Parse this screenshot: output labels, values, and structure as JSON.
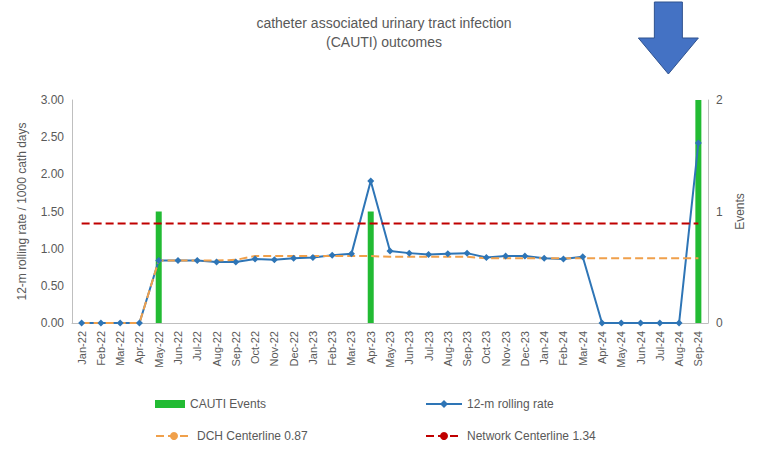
{
  "chart_data": {
    "type": "line",
    "title": "catheter associated urinary tract infection\n(CAUTI) outcomes",
    "y_label": "12-m rolling rate / 1000 cath days",
    "y2_label": "Events",
    "categories": [
      "Jan-22",
      "Feb-22",
      "Mar-22",
      "Apr-22",
      "May-22",
      "Jun-22",
      "Jul-22",
      "Aug-22",
      "Sep-22",
      "Oct-22",
      "Nov-22",
      "Dec-22",
      "Jan-23",
      "Feb-23",
      "Mar-23",
      "Apr-23",
      "May-23",
      "Jun-23",
      "Jul-23",
      "Aug-23",
      "Sep-23",
      "Oct-23",
      "Nov-23",
      "Dec-23",
      "Jan-24",
      "Feb-24",
      "Mar-24",
      "Apr-24",
      "May-24",
      "Jun-24",
      "Jul-24",
      "Aug-24",
      "Sep-24"
    ],
    "series": [
      {
        "name": "CAUTI Events",
        "type": "bar",
        "axis": "y2",
        "color": "#22bb33",
        "values": [
          0,
          0,
          0,
          0,
          1,
          0,
          0,
          0,
          0,
          0,
          0,
          0,
          0,
          0,
          0,
          1,
          0,
          0,
          0,
          0,
          0,
          0,
          0,
          0,
          0,
          0,
          0,
          0,
          0,
          0,
          0,
          0,
          2
        ]
      },
      {
        "name": "12-m rolling rate",
        "type": "line",
        "color": "#2e75b6",
        "marker": "diamond",
        "line_style": "solid",
        "values": [
          0,
          0,
          0,
          0,
          0.84,
          0.84,
          0.84,
          0.82,
          0.82,
          0.86,
          0.85,
          0.87,
          0.88,
          0.91,
          0.93,
          1.91,
          0.97,
          0.94,
          0.92,
          0.93,
          0.94,
          0.88,
          0.9,
          0.9,
          0.87,
          0.86,
          0.89,
          0,
          0,
          0,
          0,
          0,
          2.42
        ]
      },
      {
        "name": "DCH Centerline 0.87",
        "type": "line",
        "color": "#f0a04b",
        "marker": "none",
        "line_style": "dashed",
        "values": [
          0,
          0,
          0,
          0,
          0.84,
          0.84,
          0.84,
          0.84,
          0.85,
          0.9,
          0.9,
          0.9,
          0.9,
          0.9,
          0.9,
          0.9,
          0.89,
          0.89,
          0.89,
          0.89,
          0.89,
          0.87,
          0.87,
          0.87,
          0.87,
          0.87,
          0.87,
          0.87,
          0.87,
          0.87,
          0.87,
          0.87,
          0.87
        ]
      },
      {
        "name": "Network Centerline 1.34",
        "type": "line",
        "color": "#c00000",
        "marker": "none",
        "line_style": "dashed",
        "values": [
          1.34,
          1.34,
          1.34,
          1.34,
          1.34,
          1.34,
          1.34,
          1.34,
          1.34,
          1.34,
          1.34,
          1.34,
          1.34,
          1.34,
          1.34,
          1.34,
          1.34,
          1.34,
          1.34,
          1.34,
          1.34,
          1.34,
          1.34,
          1.34,
          1.34,
          1.34,
          1.34,
          1.34,
          1.34,
          1.34,
          1.34,
          1.34,
          1.34
        ]
      }
    ],
    "ylim": [
      0,
      3
    ],
    "yticks": [
      {
        "value": 0,
        "label": "0.00"
      },
      {
        "value": 0.5,
        "label": "0.50"
      },
      {
        "value": 1,
        "label": "1.00"
      },
      {
        "value": 1.5,
        "label": "1.50"
      },
      {
        "value": 2,
        "label": "2.00"
      },
      {
        "value": 2.5,
        "label": "2.50"
      },
      {
        "value": 3,
        "label": "3.00"
      }
    ],
    "y2lim": [
      0,
      2
    ],
    "y2ticks": [
      0,
      1,
      2
    ],
    "grid": false,
    "legend": "bottom"
  }
}
